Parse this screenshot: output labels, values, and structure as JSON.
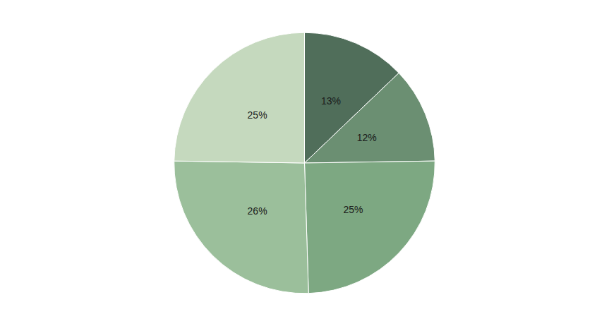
{
  "chart_data": {
    "type": "pie",
    "values": [
      13,
      12,
      25,
      26,
      25
    ],
    "value_labels": [
      "13%",
      "12%",
      "25%",
      "26%",
      "25%"
    ],
    "colors": [
      "#506e5a",
      "#6b8f72",
      "#7da882",
      "#9bbf9b",
      "#c5d9be"
    ],
    "data_labels": true
  }
}
